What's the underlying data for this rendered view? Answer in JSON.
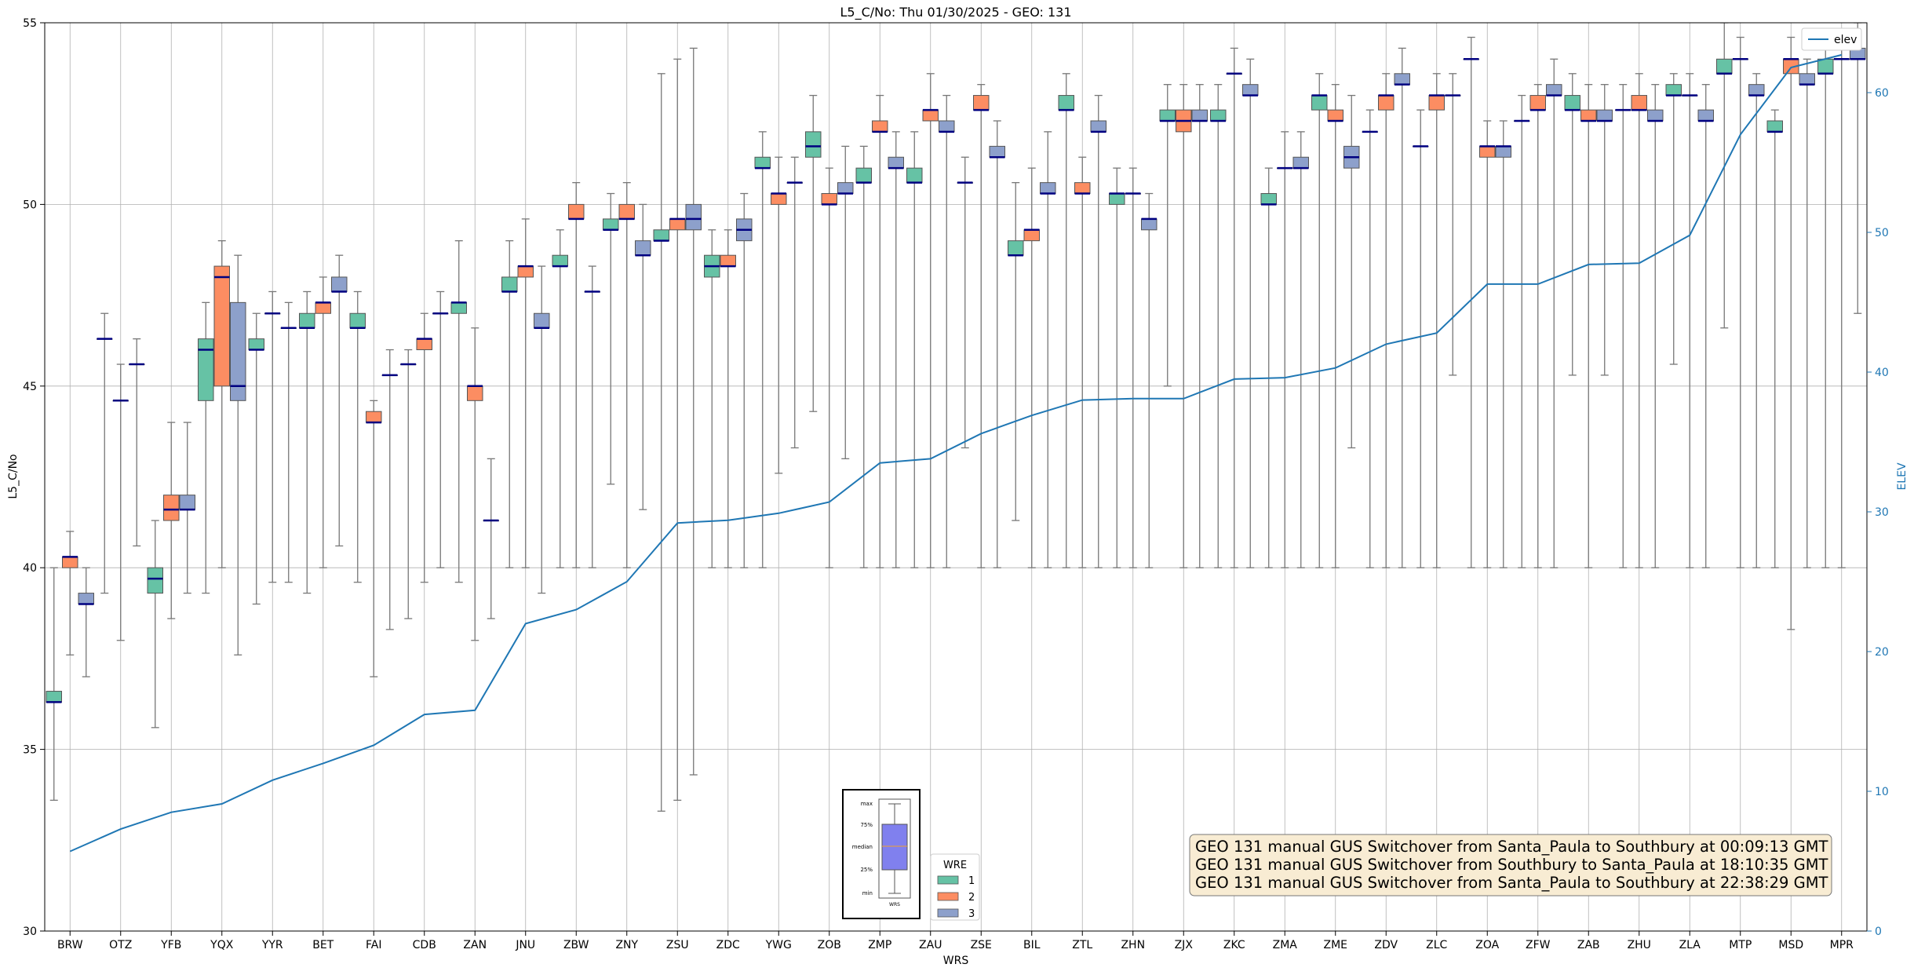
{
  "chart_data": {
    "type": "box",
    "title": "L5_C/No: Thu 01/30/2025 - GEO: 131",
    "xlabel": "WRS",
    "ylabel": "L5_C/No",
    "y2label": "ELEV",
    "ylim": [
      30,
      55
    ],
    "y2lim": [
      0,
      65
    ],
    "yticks": [
      "30",
      "35",
      "40",
      "45",
      "50",
      "55"
    ],
    "y2ticks": [
      "0",
      "10",
      "20",
      "30",
      "40",
      "50",
      "60"
    ],
    "grid": true,
    "categories": [
      "BRW",
      "OTZ",
      "YFB",
      "YQX",
      "YYR",
      "BET",
      "FAI",
      "CDB",
      "ZAN",
      "JNU",
      "ZBW",
      "ZNY",
      "ZSU",
      "ZDC",
      "YWG",
      "ZOB",
      "ZMP",
      "ZAU",
      "ZSE",
      "BIL",
      "ZTL",
      "ZHN",
      "ZJX",
      "ZKC",
      "ZMA",
      "ZME",
      "ZDV",
      "ZLC",
      "ZOA",
      "ZFW",
      "ZAB",
      "ZHU",
      "ZLA",
      "MTP",
      "MSD",
      "MPR"
    ],
    "series": [
      {
        "name": "1",
        "color": "#66c2a5",
        "boxes": [
          [
            33.6,
            36.3,
            36.3,
            36.6,
            40.0
          ],
          [
            39.3,
            46.3,
            46.3,
            46.3,
            47.0
          ],
          [
            35.6,
            39.3,
            39.7,
            40.0,
            41.3
          ],
          [
            39.3,
            44.6,
            46.0,
            46.3,
            47.3
          ],
          [
            39.0,
            46.0,
            46.0,
            46.3,
            47.0
          ],
          [
            39.3,
            46.6,
            46.6,
            47.0,
            47.6
          ],
          [
            39.6,
            46.6,
            46.6,
            47.0,
            47.6
          ],
          [
            38.6,
            45.6,
            45.6,
            45.6,
            46.0
          ],
          [
            39.6,
            47.0,
            47.3,
            47.3,
            49.0
          ],
          [
            40.0,
            47.6,
            47.6,
            48.0,
            49.0
          ],
          [
            40.0,
            48.3,
            48.3,
            48.6,
            49.3
          ],
          [
            42.3,
            49.3,
            49.3,
            49.6,
            50.3
          ],
          [
            33.3,
            49.0,
            49.0,
            49.3,
            53.6
          ],
          [
            40.0,
            48.0,
            48.3,
            48.6,
            49.3
          ],
          [
            40.0,
            51.0,
            51.0,
            51.3,
            52.0
          ],
          [
            44.3,
            51.3,
            51.6,
            52.0,
            53.0
          ],
          [
            40.0,
            50.6,
            50.6,
            51.0,
            51.6
          ],
          [
            40.0,
            50.6,
            50.6,
            51.0,
            52.0
          ],
          [
            43.3,
            50.6,
            50.6,
            50.6,
            51.3
          ],
          [
            41.3,
            48.6,
            48.6,
            49.0,
            50.6
          ],
          [
            40.0,
            52.6,
            52.6,
            53.0,
            53.6
          ],
          [
            40.0,
            50.0,
            50.3,
            50.3,
            51.0
          ],
          [
            45.0,
            52.3,
            52.3,
            52.6,
            53.3
          ],
          [
            40.0,
            52.3,
            52.3,
            52.6,
            53.3
          ],
          [
            40.0,
            50.0,
            50.0,
            50.3,
            51.0
          ],
          [
            40.0,
            52.6,
            53.0,
            53.0,
            53.6
          ],
          [
            40.0,
            52.0,
            52.0,
            52.0,
            52.6
          ],
          [
            40.0,
            51.6,
            51.6,
            51.6,
            52.6
          ],
          [
            40.0,
            54.0,
            54.0,
            54.0,
            54.6
          ],
          [
            40.0,
            52.3,
            52.3,
            52.3,
            53.0
          ],
          [
            45.3,
            52.6,
            52.6,
            53.0,
            53.6
          ],
          [
            40.0,
            52.6,
            52.6,
            52.6,
            53.3
          ],
          [
            45.6,
            53.0,
            53.0,
            53.3,
            53.6
          ],
          [
            46.6,
            53.6,
            53.6,
            54.0,
            55.0
          ],
          [
            40.0,
            52.0,
            52.0,
            52.3,
            52.6
          ],
          [
            40.0,
            53.6,
            53.6,
            54.0,
            54.3
          ]
        ]
      },
      {
        "name": "2",
        "color": "#fc8d62",
        "boxes": [
          [
            37.6,
            40.0,
            40.3,
            40.3,
            41.0
          ],
          [
            38.0,
            44.6,
            44.6,
            44.6,
            45.6
          ],
          [
            38.6,
            41.3,
            41.6,
            42.0,
            44.0
          ],
          [
            40.0,
            45.0,
            48.0,
            48.3,
            49.0
          ],
          [
            39.6,
            47.0,
            47.0,
            47.0,
            47.6
          ],
          [
            40.0,
            47.0,
            47.3,
            47.3,
            48.0
          ],
          [
            37.0,
            44.0,
            44.0,
            44.3,
            44.6
          ],
          [
            39.6,
            46.0,
            46.3,
            46.3,
            47.0
          ],
          [
            38.0,
            44.6,
            45.0,
            45.0,
            46.6
          ],
          [
            40.0,
            48.0,
            48.3,
            48.3,
            49.6
          ],
          [
            40.0,
            49.6,
            49.6,
            50.0,
            50.6
          ],
          [
            40.0,
            49.6,
            49.6,
            50.0,
            50.6
          ],
          [
            33.6,
            49.3,
            49.6,
            49.6,
            54.0
          ],
          [
            40.0,
            48.3,
            48.3,
            48.6,
            49.3
          ],
          [
            42.6,
            50.0,
            50.3,
            50.3,
            51.3
          ],
          [
            40.0,
            50.0,
            50.0,
            50.3,
            51.0
          ],
          [
            40.0,
            52.0,
            52.0,
            52.3,
            53.0
          ],
          [
            40.0,
            52.3,
            52.6,
            52.6,
            53.6
          ],
          [
            40.0,
            52.6,
            52.6,
            53.0,
            53.3
          ],
          [
            40.0,
            49.0,
            49.3,
            49.3,
            51.0
          ],
          [
            40.0,
            50.3,
            50.3,
            50.6,
            51.3
          ],
          [
            40.0,
            50.3,
            50.3,
            50.3,
            51.0
          ],
          [
            40.0,
            52.0,
            52.3,
            52.6,
            53.3
          ],
          [
            40.0,
            53.6,
            53.6,
            53.6,
            54.3
          ],
          [
            40.0,
            51.0,
            51.0,
            51.0,
            52.0
          ],
          [
            40.0,
            52.3,
            52.3,
            52.6,
            53.3
          ],
          [
            40.0,
            52.6,
            53.0,
            53.0,
            53.6
          ],
          [
            40.0,
            52.6,
            53.0,
            53.0,
            53.6
          ],
          [
            40.0,
            51.3,
            51.6,
            51.6,
            52.3
          ],
          [
            40.0,
            52.6,
            52.6,
            53.0,
            53.3
          ],
          [
            40.0,
            52.3,
            52.3,
            52.6,
            53.3
          ],
          [
            40.0,
            52.6,
            52.6,
            53.0,
            53.6
          ],
          [
            40.0,
            53.0,
            53.0,
            53.0,
            53.6
          ],
          [
            40.0,
            54.0,
            54.0,
            54.0,
            54.6
          ],
          [
            38.3,
            53.6,
            54.0,
            54.0,
            54.6
          ],
          [
            40.0,
            54.0,
            54.0,
            54.0,
            54.6
          ]
        ]
      },
      {
        "name": "3",
        "color": "#8da0cb",
        "boxes": [
          [
            37.0,
            39.0,
            39.0,
            39.3,
            40.0
          ],
          [
            40.6,
            45.6,
            45.6,
            45.6,
            46.3
          ],
          [
            39.3,
            41.6,
            41.6,
            42.0,
            44.0
          ],
          [
            37.6,
            44.6,
            45.0,
            47.3,
            48.6
          ],
          [
            39.6,
            46.6,
            46.6,
            46.6,
            47.3
          ],
          [
            40.6,
            47.6,
            47.6,
            48.0,
            48.6
          ],
          [
            38.3,
            45.3,
            45.3,
            45.3,
            46.0
          ],
          [
            40.0,
            47.0,
            47.0,
            47.0,
            47.6
          ],
          [
            38.6,
            41.3,
            41.3,
            41.3,
            43.0
          ],
          [
            39.3,
            46.6,
            46.6,
            47.0,
            48.3
          ],
          [
            40.0,
            47.6,
            47.6,
            47.6,
            48.3
          ],
          [
            41.6,
            48.6,
            48.6,
            49.0,
            50.0
          ],
          [
            34.3,
            49.3,
            49.6,
            50.0,
            54.3
          ],
          [
            40.0,
            49.0,
            49.3,
            49.6,
            50.3
          ],
          [
            43.3,
            50.6,
            50.6,
            50.6,
            51.3
          ],
          [
            43.0,
            50.3,
            50.3,
            50.6,
            51.6
          ],
          [
            40.0,
            51.0,
            51.0,
            51.3,
            52.0
          ],
          [
            40.0,
            52.0,
            52.0,
            52.3,
            53.0
          ],
          [
            40.0,
            51.3,
            51.3,
            51.6,
            52.3
          ],
          [
            40.0,
            50.3,
            50.3,
            50.6,
            52.0
          ],
          [
            40.0,
            52.0,
            52.0,
            52.3,
            53.0
          ],
          [
            40.0,
            49.3,
            49.6,
            49.6,
            50.3
          ],
          [
            40.0,
            52.3,
            52.3,
            52.6,
            53.3
          ],
          [
            40.0,
            53.0,
            53.0,
            53.3,
            54.0
          ],
          [
            40.0,
            51.0,
            51.0,
            51.3,
            52.0
          ],
          [
            43.3,
            51.0,
            51.3,
            51.6,
            53.0
          ],
          [
            40.0,
            53.3,
            53.3,
            53.6,
            54.3
          ],
          [
            45.3,
            53.0,
            53.0,
            53.0,
            53.6
          ],
          [
            40.0,
            51.3,
            51.6,
            51.6,
            52.3
          ],
          [
            40.0,
            53.0,
            53.0,
            53.3,
            54.0
          ],
          [
            45.3,
            52.3,
            52.3,
            52.6,
            53.3
          ],
          [
            40.0,
            52.3,
            52.3,
            52.6,
            53.3
          ],
          [
            40.0,
            52.3,
            52.3,
            52.6,
            53.3
          ],
          [
            40.0,
            53.0,
            53.0,
            53.3,
            53.6
          ],
          [
            40.0,
            53.3,
            53.3,
            53.6,
            54.0
          ],
          [
            47.0,
            54.0,
            54.0,
            54.3,
            55.0
          ]
        ]
      }
    ],
    "elevation": {
      "name": "elev",
      "color": "#1f77b4",
      "axis": "right",
      "values": [
        5.7,
        7.3,
        8.5,
        9.1,
        10.8,
        12.0,
        13.3,
        15.5,
        15.8,
        22.0,
        23.0,
        25.0,
        29.2,
        29.4,
        29.9,
        30.7,
        33.5,
        33.8,
        35.6,
        36.9,
        38.0,
        38.1,
        38.1,
        39.5,
        39.6,
        40.3,
        42.0,
        42.8,
        46.3,
        46.3,
        47.7,
        47.8,
        49.8,
        57.0,
        61.8,
        62.7
      ]
    },
    "legend": {
      "title": "WRE",
      "location": "bottom-center",
      "entries": [
        "1",
        "2",
        "3"
      ]
    },
    "legend_elev": {
      "location": "top-right",
      "entries": [
        "elev"
      ]
    },
    "boxplot_key": {
      "labels": [
        "max",
        "75%",
        "median",
        "25%",
        "min"
      ],
      "xlabel": "WRS"
    },
    "annotations": [
      "GEO 131 manual GUS Switchover from Santa_Paula to Southbury at 00:09:13 GMT",
      "GEO 131 manual GUS Switchover from Southbury to Santa_Paula at 18:10:35 GMT",
      "GEO 131 manual GUS Switchover from Santa_Paula to Southbury at 22:38:29 GMT"
    ]
  }
}
